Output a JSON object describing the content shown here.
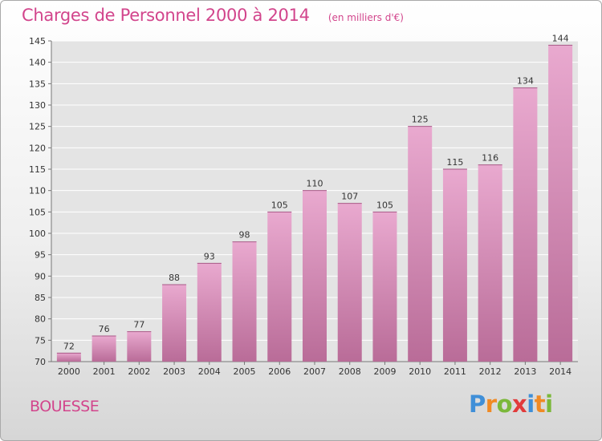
{
  "chart_data": {
    "type": "bar",
    "title": "Charges de Personnel 2000 à 2014",
    "subtitle": "(en milliers d'€)",
    "categories": [
      "2000",
      "2001",
      "2002",
      "2003",
      "2004",
      "2005",
      "2006",
      "2007",
      "2008",
      "2009",
      "2010",
      "2011",
      "2012",
      "2013",
      "2014"
    ],
    "values": [
      72,
      76,
      77,
      88,
      93,
      98,
      105,
      110,
      107,
      105,
      125,
      115,
      116,
      134,
      144
    ],
    "value_labels": [
      "72",
      "76",
      "77",
      "88",
      "93",
      "98",
      "105",
      "110",
      "107",
      "105",
      "125",
      "115",
      "116",
      "134",
      "144"
    ],
    "ylim": [
      70,
      145
    ],
    "yticks": [
      70,
      75,
      80,
      85,
      90,
      95,
      100,
      105,
      110,
      115,
      120,
      125,
      130,
      135,
      140,
      145
    ],
    "ytick_labels": [
      "70",
      "75",
      "80",
      "85",
      "90",
      "95",
      "100",
      "105",
      "110",
      "115",
      "120",
      "125",
      "130",
      "135",
      "140",
      "145"
    ],
    "xlabel": "",
    "ylabel": "",
    "grid": true,
    "legend": "none",
    "colors": {
      "bar_light": "#e9a9cf",
      "bar_dark": "#b96c98",
      "plot_bg": "#e4e4e4",
      "grid": "#ffffff",
      "accent": "#d2458c"
    }
  },
  "footer": {
    "commune": "BOUESSE",
    "brand_letters": [
      {
        "char": "P",
        "color": "#3f8fd8"
      },
      {
        "char": "r",
        "color": "#f08a24"
      },
      {
        "char": "o",
        "color": "#7bb83a"
      },
      {
        "char": "x",
        "color": "#e23b3b"
      },
      {
        "char": "i",
        "color": "#3f8fd8"
      },
      {
        "char": "t",
        "color": "#f08a24"
      },
      {
        "char": "i",
        "color": "#7bb83a"
      }
    ]
  }
}
